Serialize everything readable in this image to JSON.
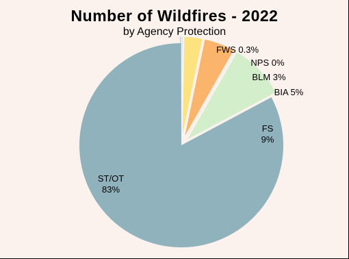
{
  "chart_data": {
    "type": "pie",
    "title": "Number of Wildfires - 2022",
    "subtitle": "by Agency Protection",
    "colors": {
      "background": "#fbf2ed",
      "slice_outline": "#ffffff"
    },
    "slices": [
      {
        "name": "ST/OT",
        "value": 83,
        "display": "83%",
        "color": "#8fb2bd"
      },
      {
        "name": "FWS",
        "value": 0.3,
        "display": "0.3%",
        "color": "#a9c8d3"
      },
      {
        "name": "NPS",
        "value": 0,
        "display": "0%",
        "color": "#c4dde5"
      },
      {
        "name": "BLM",
        "value": 3,
        "display": "3%",
        "color": "#fde37f"
      },
      {
        "name": "BIA",
        "value": 5,
        "display": "5%",
        "color": "#fbb46c"
      },
      {
        "name": "FS",
        "value": 9,
        "display": "9%",
        "color": "#d3eecb"
      }
    ],
    "exploded": [
      "FWS",
      "NPS",
      "BLM",
      "BIA",
      "FS"
    ],
    "legend": "none"
  }
}
